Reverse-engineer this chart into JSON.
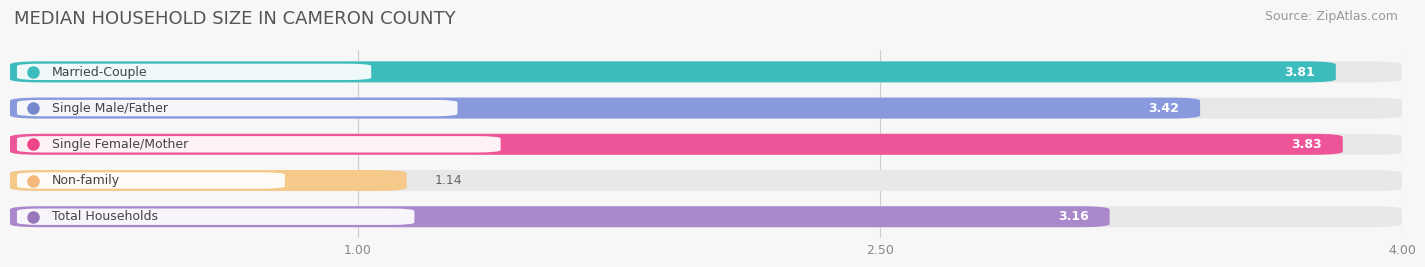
{
  "title": "MEDIAN HOUSEHOLD SIZE IN CAMERON COUNTY",
  "source": "Source: ZipAtlas.com",
  "categories": [
    "Married-Couple",
    "Single Male/Father",
    "Single Female/Mother",
    "Non-family",
    "Total Households"
  ],
  "values": [
    3.81,
    3.42,
    3.83,
    1.14,
    3.16
  ],
  "bar_colors": [
    "#3cbcbc",
    "#8899dd",
    "#ee5599",
    "#f5c98a",
    "#aa88cc"
  ],
  "label_dot_colors": [
    "#3cbcbc",
    "#7788cc",
    "#ee4488",
    "#f5b87a",
    "#9977bb"
  ],
  "xlim": [
    0,
    4.0
  ],
  "xticks": [
    1.0,
    2.5,
    4.0
  ],
  "xtick_labels": [
    "1.00",
    "2.50",
    "4.00"
  ],
  "bar_height": 0.58,
  "background_color": "#f7f7f7",
  "bar_bg_color": "#e8e8e8",
  "title_fontsize": 13,
  "source_fontsize": 9,
  "label_fontsize": 9,
  "value_fontsize": 9,
  "tick_fontsize": 9
}
